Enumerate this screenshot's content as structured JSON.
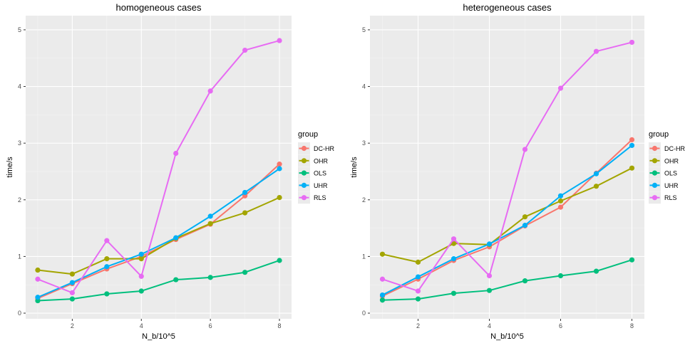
{
  "chart_data": [
    {
      "type": "line",
      "title": "homogeneous cases",
      "xlabel": "N_b/10^5",
      "ylabel": "time/s",
      "x": [
        1,
        2,
        3,
        4,
        5,
        6,
        7,
        8
      ],
      "xticks": [
        2,
        4,
        6,
        8
      ],
      "yticks": [
        0,
        1,
        2,
        3,
        4,
        5
      ],
      "xlim": [
        0.65,
        8.35
      ],
      "ylim": [
        -0.1,
        5.25
      ],
      "grid": true,
      "series": [
        {
          "name": "DC-HR",
          "color": "#F8766D",
          "values": [
            0.26,
            0.52,
            0.78,
            1.0,
            1.3,
            1.57,
            2.07,
            2.63
          ]
        },
        {
          "name": "OHR",
          "color": "#A3A500",
          "values": [
            0.76,
            0.69,
            0.96,
            0.96,
            1.32,
            1.58,
            1.77,
            2.04
          ]
        },
        {
          "name": "OLS",
          "color": "#00BF7D",
          "values": [
            0.22,
            0.25,
            0.34,
            0.39,
            0.59,
            0.63,
            0.72,
            0.93
          ]
        },
        {
          "name": "UHR",
          "color": "#00B0F6",
          "values": [
            0.28,
            0.54,
            0.82,
            1.04,
            1.33,
            1.71,
            2.13,
            2.55
          ]
        },
        {
          "name": "RLS",
          "color": "#E76BF3",
          "values": [
            0.6,
            0.36,
            1.28,
            0.65,
            2.82,
            3.92,
            4.64,
            4.81
          ]
        }
      ],
      "legend": {
        "title": "group",
        "position": "right"
      }
    },
    {
      "type": "line",
      "title": "heterogeneous cases",
      "xlabel": "N_b/10^5",
      "ylabel": "time/s",
      "x": [
        1,
        2,
        3,
        4,
        5,
        6,
        7,
        8
      ],
      "xticks": [
        2,
        4,
        6,
        8
      ],
      "yticks": [
        0,
        1,
        2,
        3,
        4,
        5
      ],
      "xlim": [
        0.65,
        8.35
      ],
      "ylim": [
        -0.1,
        5.25
      ],
      "grid": true,
      "series": [
        {
          "name": "DC-HR",
          "color": "#F8766D",
          "values": [
            0.3,
            0.6,
            0.93,
            1.17,
            1.54,
            1.87,
            2.47,
            3.06
          ]
        },
        {
          "name": "OHR",
          "color": "#A3A500",
          "values": [
            1.04,
            0.9,
            1.23,
            1.21,
            1.7,
            1.98,
            2.24,
            2.56
          ]
        },
        {
          "name": "OLS",
          "color": "#00BF7D",
          "values": [
            0.23,
            0.25,
            0.35,
            0.4,
            0.57,
            0.66,
            0.74,
            0.94
          ]
        },
        {
          "name": "UHR",
          "color": "#00B0F6",
          "values": [
            0.32,
            0.64,
            0.96,
            1.22,
            1.55,
            2.07,
            2.46,
            2.96
          ]
        },
        {
          "name": "RLS",
          "color": "#E76BF3",
          "values": [
            0.6,
            0.39,
            1.31,
            0.66,
            2.89,
            3.97,
            4.62,
            4.78
          ]
        }
      ],
      "legend": {
        "title": "group",
        "position": "right"
      }
    }
  ]
}
